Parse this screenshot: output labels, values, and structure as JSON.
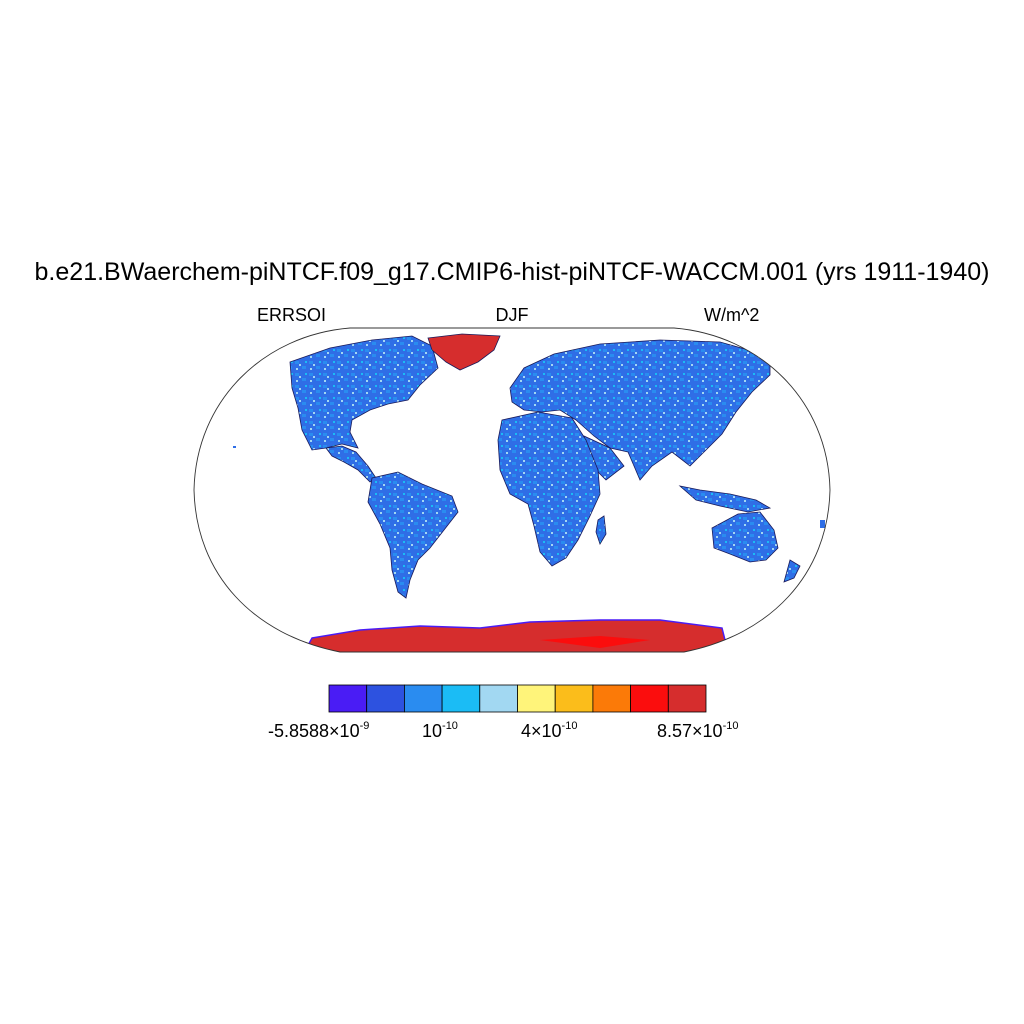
{
  "title": "b.e21.BWaerchem-piNTCF.f09_g17.CMIP6-hist-piNTCF-WACCM.001 (yrs 1911-1940)",
  "subtitle_left": "ERRSOI",
  "subtitle_center": "DJF",
  "subtitle_right": "W/m^2",
  "colorbar": {
    "colors": [
      "#4a1cf5",
      "#2d52e0",
      "#2a8cf0",
      "#1bbcf5",
      "#a2d8f2",
      "#fff47a",
      "#fbbd1b",
      "#fb7a08",
      "#fb0d0d",
      "#d62d2d"
    ],
    "labels": [
      {
        "mantissa": "-5.8588×10",
        "exp": "-9"
      },
      {
        "mantissa": "10",
        "exp": "-10"
      },
      {
        "mantissa": "4×10",
        "exp": "-10"
      },
      {
        "mantissa": "8.57×10",
        "exp": "-10"
      }
    ]
  },
  "map": {
    "projection": "Robinson",
    "land_color": "#2f6ee6",
    "ice_color": "#d62d2d",
    "ocean_color": "#ffffff"
  }
}
